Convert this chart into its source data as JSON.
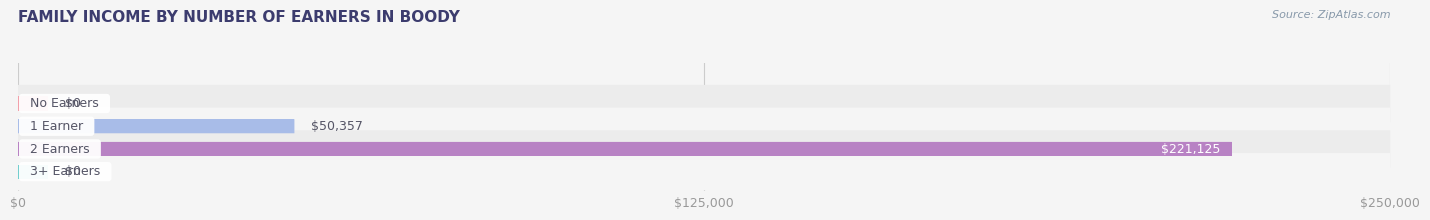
{
  "title": "FAMILY INCOME BY NUMBER OF EARNERS IN BOODY",
  "source": "Source: ZipAtlas.com",
  "categories": [
    "No Earners",
    "1 Earner",
    "2 Earners",
    "3+ Earners"
  ],
  "values": [
    0,
    50357,
    221125,
    0
  ],
  "max_value": 250000,
  "bar_colors": [
    "#f2a0aa",
    "#a8bce8",
    "#b882c4",
    "#72cece"
  ],
  "value_labels": [
    "$0",
    "$50,357",
    "$221,125",
    "$0"
  ],
  "value_label_inside": [
    false,
    false,
    true,
    false
  ],
  "x_ticks": [
    0,
    125000,
    250000
  ],
  "x_tick_labels": [
    "$0",
    "$125,000",
    "$250,000"
  ],
  "title_color": "#3c3c6e",
  "title_fontsize": 11,
  "source_color": "#8899aa",
  "bg_color": "#f5f5f5",
  "row_bg_even": "#ececec",
  "row_bg_odd": "#f5f5f5",
  "label_text_color": "#555566",
  "label_fontsize": 9,
  "value_fontsize": 9,
  "tick_fontsize": 9,
  "tick_color": "#999999"
}
